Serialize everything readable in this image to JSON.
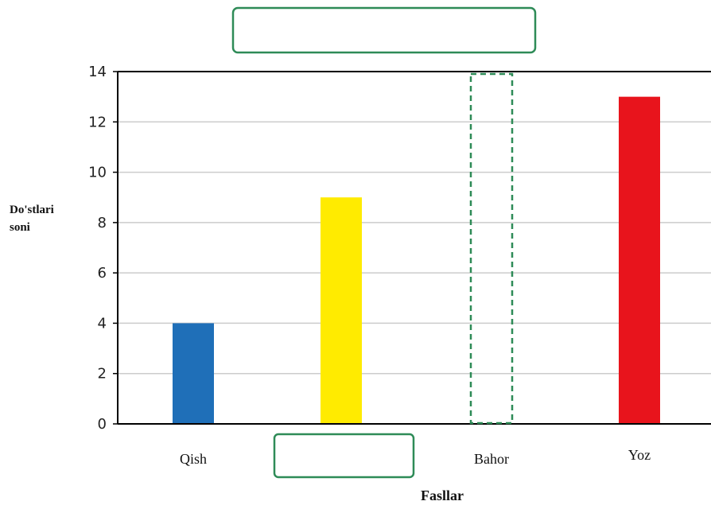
{
  "chart_data": {
    "type": "bar",
    "title": "",
    "xlabel": "Fasllar",
    "ylabel_lines": [
      "Do'stlari",
      "soni"
    ],
    "categories": [
      "Qish",
      "",
      "Bahor",
      "Yoz"
    ],
    "values": [
      4,
      9,
      null,
      13
    ],
    "colors": [
      "#1f6fb8",
      "#ffeb00",
      null,
      "#e8141c"
    ],
    "ylim": [
      0,
      14
    ],
    "yticks": [
      0,
      2,
      4,
      6,
      8,
      10,
      12,
      14
    ],
    "grid": true,
    "legend": "none",
    "blank_boxes": [
      "title",
      "second-category-label",
      "third-bar"
    ],
    "box_color": "#2e8b57"
  }
}
